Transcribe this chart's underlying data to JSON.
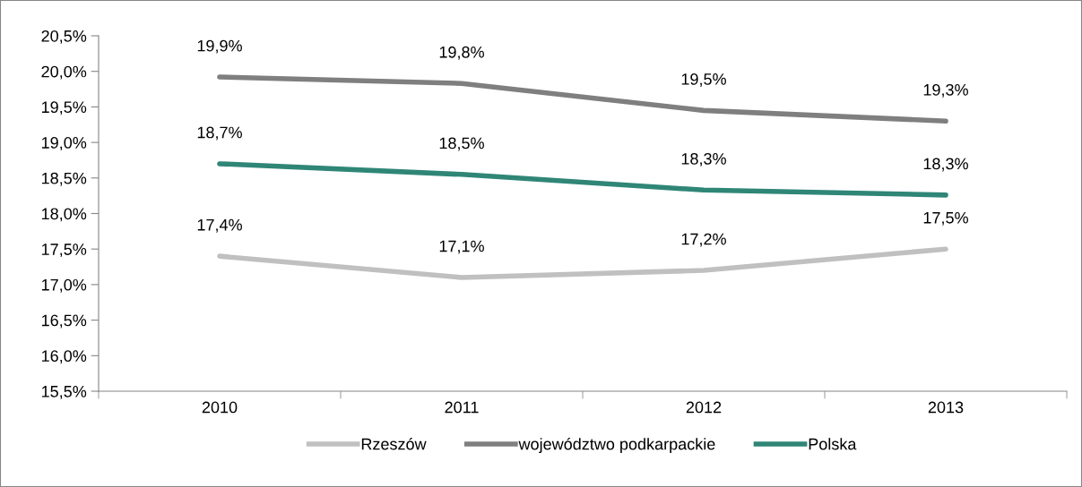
{
  "chart_data": {
    "type": "line",
    "categories": [
      "2010",
      "2011",
      "2012",
      "2013"
    ],
    "series": [
      {
        "name": "Rzeszów",
        "color": "#c0c0c0",
        "values": [
          17.4,
          17.1,
          17.2,
          17.5
        ],
        "value_labels": [
          "17,4%",
          "17,1%",
          "17,2%",
          "17,5%"
        ]
      },
      {
        "name": "województwo podkarpackie",
        "color": "#7f7f7f",
        "values": [
          19.92,
          19.83,
          19.45,
          19.3
        ],
        "value_labels": [
          "19,9%",
          "19,8%",
          "19,5%",
          "19,3%"
        ]
      },
      {
        "name": "Polska",
        "color": "#2f8677",
        "values": [
          18.7,
          18.55,
          18.33,
          18.26
        ],
        "value_labels": [
          "18,7%",
          "18,5%",
          "18,3%",
          "18,3%"
        ]
      }
    ],
    "ylim": [
      15.5,
      20.5
    ],
    "yticks": [
      {
        "value": 15.5,
        "label": "15,5%"
      },
      {
        "value": 16.0,
        "label": "16,0%"
      },
      {
        "value": 16.5,
        "label": "16,5%"
      },
      {
        "value": 17.0,
        "label": "17,0%"
      },
      {
        "value": 17.5,
        "label": "17,5%"
      },
      {
        "value": 18.0,
        "label": "18,0%"
      },
      {
        "value": 18.5,
        "label": "18,5%"
      },
      {
        "value": 19.0,
        "label": "19,0%"
      },
      {
        "value": 19.5,
        "label": "19,5%"
      },
      {
        "value": 20.0,
        "label": "20,0%"
      },
      {
        "value": 20.5,
        "label": "20,5%"
      }
    ],
    "grid": false,
    "legend": "bottom",
    "marker": "none",
    "line_style": "solid"
  }
}
